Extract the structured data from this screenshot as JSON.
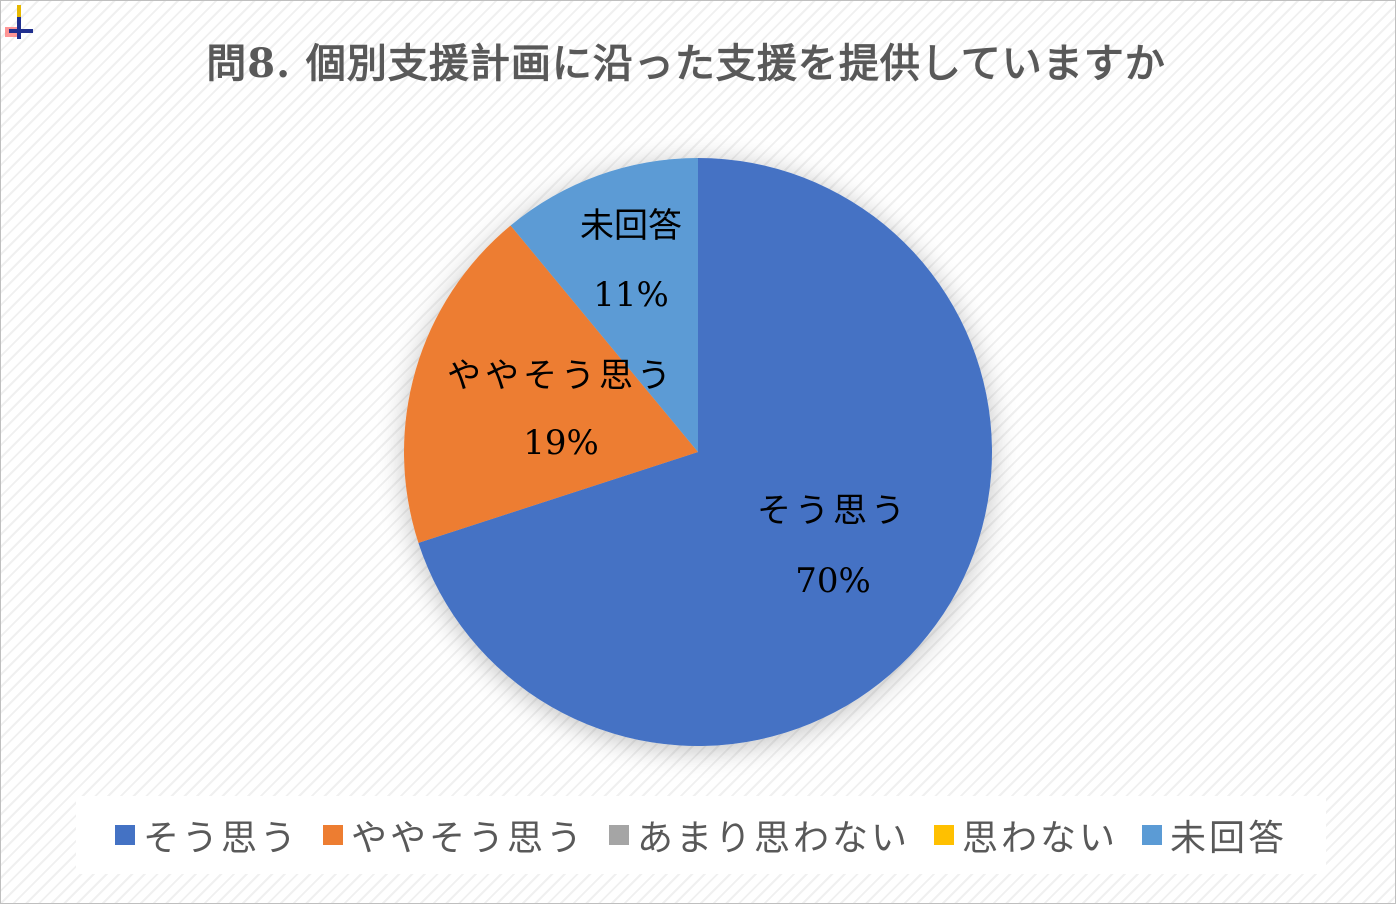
{
  "chart_data": {
    "type": "pie",
    "title": "問8. 個別支援計画に沿った支援を提供していますか",
    "categories": [
      "そう思う",
      "ややそう思う",
      "あまり思わない",
      "思わない",
      "未回答"
    ],
    "values": [
      70,
      19,
      0,
      0,
      11
    ],
    "value_unit": "%",
    "labels": [
      "70%",
      "19%",
      "",
      "",
      "11%"
    ],
    "colors": [
      "#4472C4",
      "#ED7D31",
      "#A5A5A5",
      "#FFC000",
      "#5B9BD5"
    ],
    "legend_position": "bottom",
    "start_angle": "12 o'clock",
    "direction": "clockwise"
  }
}
